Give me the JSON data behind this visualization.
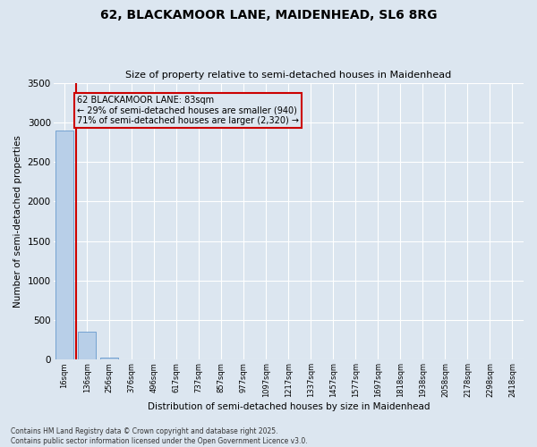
{
  "title_line1": "62, BLACKAMOOR LANE, MAIDENHEAD, SL6 8RG",
  "title_line2": "Size of property relative to semi-detached houses in Maidenhead",
  "xlabel": "Distribution of semi-detached houses by size in Maidenhead",
  "ylabel": "Number of semi-detached properties",
  "categories": [
    "16sqm",
    "136sqm",
    "256sqm",
    "376sqm",
    "496sqm",
    "617sqm",
    "737sqm",
    "857sqm",
    "977sqm",
    "1097sqm",
    "1217sqm",
    "1337sqm",
    "1457sqm",
    "1577sqm",
    "1697sqm",
    "1818sqm",
    "1938sqm",
    "2058sqm",
    "2178sqm",
    "2298sqm",
    "2418sqm"
  ],
  "values": [
    2900,
    360,
    30,
    0,
    0,
    0,
    0,
    0,
    0,
    0,
    0,
    0,
    0,
    0,
    0,
    0,
    0,
    0,
    0,
    0,
    0
  ],
  "bar_color": "#b8cfe8",
  "bar_edge_color": "#6699cc",
  "ylim": [
    0,
    3500
  ],
  "yticks": [
    0,
    500,
    1000,
    1500,
    2000,
    2500,
    3000,
    3500
  ],
  "annotation_line1": "62 BLACKAMOOR LANE: 83sqm",
  "annotation_line2": "← 29% of semi-detached houses are smaller (940)",
  "annotation_line3": "71% of semi-detached houses are larger (2,320) →",
  "vline_color": "#cc0000",
  "annotation_box_edgecolor": "#cc0000",
  "background_color": "#dce6f0",
  "grid_color": "#ffffff",
  "footer_line1": "Contains HM Land Registry data © Crown copyright and database right 2025.",
  "footer_line2": "Contains public sector information licensed under the Open Government Licence v3.0."
}
